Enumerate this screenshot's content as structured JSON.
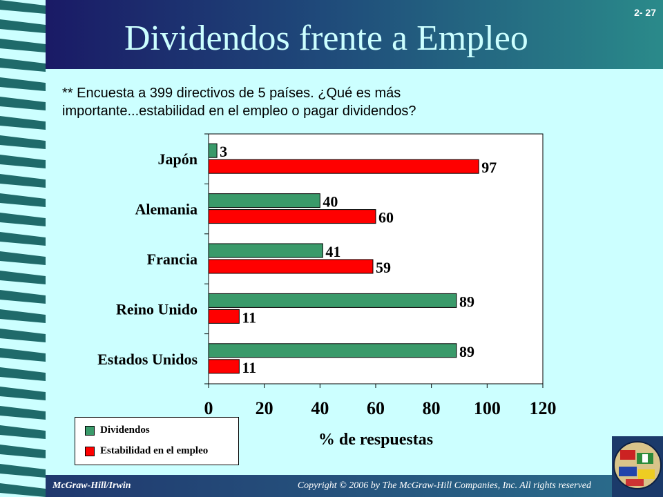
{
  "slide": {
    "title": "Dividendos frente a Empleo",
    "number": "2- 27",
    "subtitle": "** Encuesta a 399 directivos de 5 países. ¿Qué es más importante...estabilidad en el empleo o pagar dividendos?"
  },
  "footer": {
    "left": "McGraw-Hill/Irwin",
    "right": "Copyright © 2006 by The McGraw-Hill Companies, Inc. All rights reserved"
  },
  "colors": {
    "dividendos": "#3a9a6a",
    "estabilidad": "#ff0000",
    "background": "#ccffff"
  },
  "chart_data": {
    "type": "bar",
    "orientation": "horizontal",
    "categories": [
      "Japón",
      "Alemania",
      "Francia",
      "Reino Unido",
      "Estados Unidos"
    ],
    "series": [
      {
        "name": "Dividendos",
        "values": [
          3,
          40,
          41,
          89,
          89
        ]
      },
      {
        "name": "Estabilidad en el empleo",
        "values": [
          97,
          60,
          59,
          11,
          11
        ]
      }
    ],
    "xlabel": "% de respuestas",
    "ylabel": "",
    "xlim": [
      0,
      120
    ],
    "xticks": [
      "0",
      "20",
      "40",
      "60",
      "80",
      "100",
      "120"
    ],
    "legend": "bottom-left",
    "grid": false
  }
}
